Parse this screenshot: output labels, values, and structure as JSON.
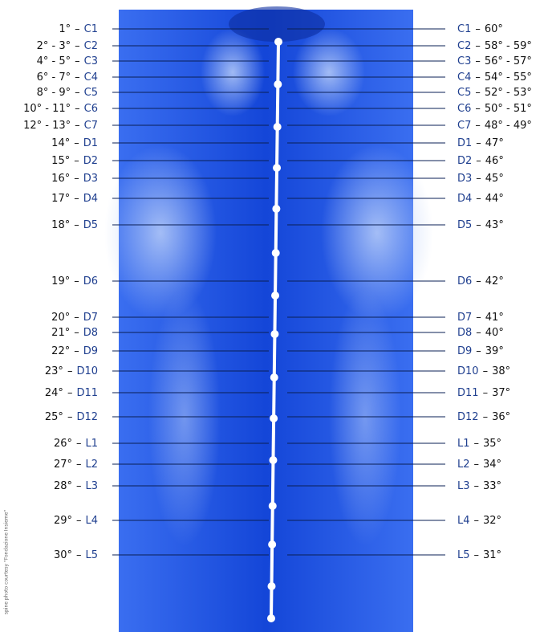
{
  "separator": "–",
  "credit": "spine photo courtesy \"Fondazione Insieme\"",
  "rows": [
    {
      "left_degree": "1°",
      "vertebra": "C1",
      "right_degree": "60°"
    },
    {
      "left_degree": "2° - 3°",
      "vertebra": "C2",
      "right_degree": "58° - 59°"
    },
    {
      "left_degree": "4° - 5°",
      "vertebra": "C3",
      "right_degree": "56° - 57°"
    },
    {
      "left_degree": "6° - 7°",
      "vertebra": "C4",
      "right_degree": "54° - 55°"
    },
    {
      "left_degree": "8° - 9°",
      "vertebra": "C5",
      "right_degree": "52° - 53°"
    },
    {
      "left_degree": "10° - 11°",
      "vertebra": "C6",
      "right_degree": "50° - 51°"
    },
    {
      "left_degree": "12° - 13°",
      "vertebra": "C7",
      "right_degree": "48° - 49°"
    },
    {
      "left_degree": "14°",
      "vertebra": "D1",
      "right_degree": "47°"
    },
    {
      "left_degree": "15°",
      "vertebra": "D2",
      "right_degree": "46°"
    },
    {
      "left_degree": "16°",
      "vertebra": "D3",
      "right_degree": "45°"
    },
    {
      "left_degree": "17°",
      "vertebra": "D4",
      "right_degree": "44°"
    },
    {
      "left_degree": "18°",
      "vertebra": "D5",
      "right_degree": "43°"
    },
    {
      "left_degree": "19°",
      "vertebra": "D6",
      "right_degree": "42°"
    },
    {
      "left_degree": "20°",
      "vertebra": "D7",
      "right_degree": "41°"
    },
    {
      "left_degree": "21°",
      "vertebra": "D8",
      "right_degree": "40°"
    },
    {
      "left_degree": "22°",
      "vertebra": "D9",
      "right_degree": "39°"
    },
    {
      "left_degree": "23°",
      "vertebra": "D10",
      "right_degree": "38°"
    },
    {
      "left_degree": "24°",
      "vertebra": "D11",
      "right_degree": "37°"
    },
    {
      "left_degree": "25°",
      "vertebra": "D12",
      "right_degree": "36°"
    },
    {
      "left_degree": "26°",
      "vertebra": "L1",
      "right_degree": "35°"
    },
    {
      "left_degree": "27°",
      "vertebra": "L2",
      "right_degree": "34°"
    },
    {
      "left_degree": "28°",
      "vertebra": "L3",
      "right_degree": "33°"
    },
    {
      "left_degree": "29°",
      "vertebra": "L4",
      "right_degree": "32°"
    },
    {
      "left_degree": "30°",
      "vertebra": "L5",
      "right_degree": "31°"
    }
  ]
}
